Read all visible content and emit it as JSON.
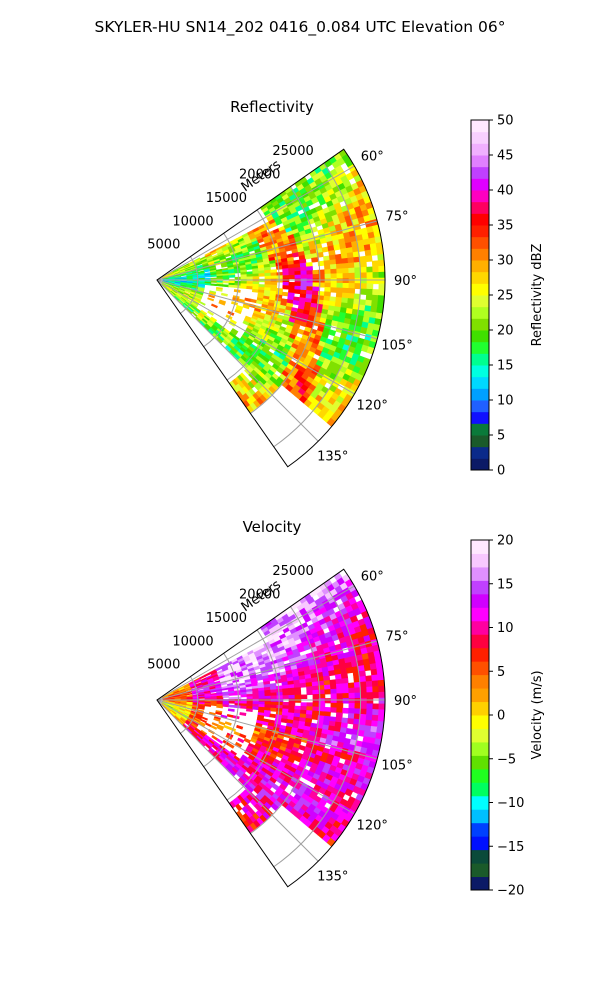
{
  "figure_title": "SKYLER-HU  SN14_202  0416_0.084 UTC Elevation 06°",
  "chart_data": [
    {
      "type": "heatmap",
      "title": "Reflectivity",
      "projection": "polar-sector",
      "azimuth_range_deg": [
        55,
        145
      ],
      "radius_max_m": 28000,
      "radial_label": "Meters",
      "radial_ticks": [
        5000,
        10000,
        15000,
        20000,
        25000
      ],
      "radial_tick_labels": [
        "5000",
        "10000",
        "15000",
        "20000",
        "25000"
      ],
      "azimuth_ticks": [
        60,
        75,
        90,
        105,
        120,
        135
      ],
      "azimuth_tick_labels": [
        "60°",
        "75°",
        "90°",
        "105°",
        "120°",
        "135°"
      ],
      "grid": true,
      "colorbar": {
        "label": "Reflectivity dBZ",
        "range": [
          0,
          50
        ],
        "ticks": [
          0,
          5,
          10,
          15,
          20,
          25,
          30,
          35,
          40,
          45,
          50
        ],
        "tick_labels": [
          "0",
          "5",
          "10",
          "15",
          "20",
          "25",
          "30",
          "35",
          "40",
          "45",
          "50"
        ]
      },
      "field_description": "Mostly 20-30 dBZ with embedded 35-45 dBZ bands; scattered gaps near the radar"
    },
    {
      "type": "heatmap",
      "title": "Velocity",
      "projection": "polar-sector",
      "azimuth_range_deg": [
        55,
        145
      ],
      "radius_max_m": 28000,
      "radial_label": "Meters",
      "radial_ticks": [
        5000,
        10000,
        15000,
        20000,
        25000
      ],
      "radial_tick_labels": [
        "5000",
        "10000",
        "15000",
        "20000",
        "25000"
      ],
      "azimuth_ticks": [
        60,
        75,
        90,
        105,
        120,
        135
      ],
      "azimuth_tick_labels": [
        "60°",
        "75°",
        "90°",
        "105°",
        "120°",
        "135°"
      ],
      "grid": true,
      "colorbar": {
        "label": "Velocity (m/s)",
        "range": [
          -20,
          20
        ],
        "ticks": [
          -20,
          -15,
          -10,
          -5,
          0,
          5,
          10,
          15,
          20
        ],
        "tick_labels": [
          "−20",
          "−15",
          "−10",
          "−5",
          "0",
          "5",
          "10",
          "15",
          "20"
        ]
      },
      "field_description": "Mostly 5-15 m/s, strongest (12-17 m/s) along the 60-105 degree sector"
    }
  ],
  "colormaps": {
    "reflectivity": [
      "#0b1a66",
      "#0a2a8a",
      "#1a5a2a",
      "#0a7a3a",
      "#1010ff",
      "#2060ff",
      "#00a0ff",
      "#00d8ff",
      "#00ffe0",
      "#00ff90",
      "#20ff30",
      "#40e000",
      "#80e000",
      "#b0ff20",
      "#e0ff30",
      "#ffff00",
      "#ffd800",
      "#ffb000",
      "#ff8000",
      "#ff5000",
      "#ff2000",
      "#ff0000",
      "#ff0060",
      "#ff00c0",
      "#e000ff",
      "#c040ff",
      "#e080ff",
      "#f0b0ff",
      "#f8d0ff",
      "#ffe8ff"
    ],
    "velocity": [
      "#0b1a66",
      "#1a5a2a",
      "#0a4a3a",
      "#0010ff",
      "#0040ff",
      "#00c0ff",
      "#00ffff",
      "#00ff60",
      "#20ff20",
      "#60e000",
      "#a0ff20",
      "#e0ff30",
      "#ffff00",
      "#ffd000",
      "#ffa000",
      "#ff8000",
      "#ff5000",
      "#ff2000",
      "#ff0040",
      "#ff00a0",
      "#ff00ff",
      "#d000ff",
      "#c040ff",
      "#e090ff",
      "#f8c8ff",
      "#ffe8ff"
    ]
  }
}
